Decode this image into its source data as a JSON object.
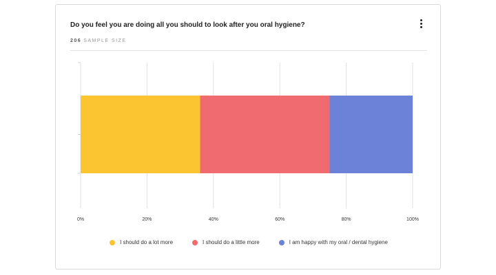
{
  "card": {
    "title": "Do you feel you are doing all you should to look after you oral hygiene?",
    "sample_count": "206",
    "sample_label": "SAMPLE SIZE",
    "menu_icon": "more-vertical-icon"
  },
  "chart_data": {
    "type": "bar",
    "orientation": "horizontal",
    "stacked": true,
    "percent": true,
    "categories": [
      ""
    ],
    "series": [
      {
        "name": "I should do a lot more",
        "values": [
          36
        ],
        "color": "#fbc531"
      },
      {
        "name": "I should do a little more",
        "values": [
          39
        ],
        "color": "#f06b6f"
      },
      {
        "name": "I am happy with my oral / dental hygiene",
        "values": [
          25
        ],
        "color": "#6b82d8"
      }
    ],
    "xlim": [
      0,
      100
    ],
    "xticks": [
      "0%",
      "20%",
      "40%",
      "60%",
      "80%",
      "100%"
    ],
    "grid": true,
    "legend_position": "bottom"
  }
}
